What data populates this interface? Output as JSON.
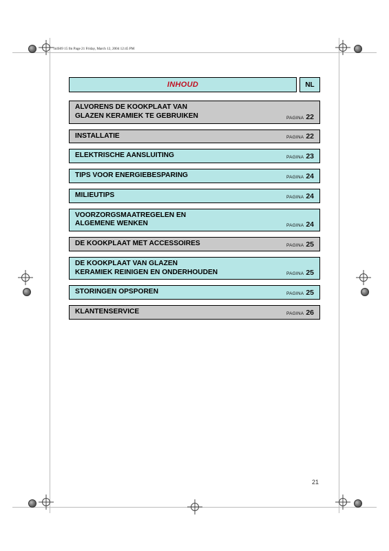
{
  "page_info_line": "InlS69 15 fm  Page 21  Friday, March 12, 2004  12:45 PM",
  "header": {
    "title": "INHOUD",
    "lang": "NL"
  },
  "page_label": "PAGINA",
  "page_number": "21",
  "colors": {
    "cyan": "#b6e6e6",
    "gray": "#c9c9c9",
    "title_red": "#c01020",
    "border": "#000000"
  },
  "toc": [
    {
      "title_lines": [
        "ALVORENS DE KOOKPLAAT VAN",
        "GLAZEN KERAMIEK TE GEBRUIKEN"
      ],
      "page": "22",
      "bg": "gray"
    },
    {
      "title_lines": [
        "INSTALLATIE"
      ],
      "page": "22",
      "bg": "gray"
    },
    {
      "title_lines": [
        "ELEKTRISCHE AANSLUITING"
      ],
      "page": "23",
      "bg": "cyan"
    },
    {
      "title_lines": [
        "TIPS VOOR ENERGIEBESPARING"
      ],
      "page": "24",
      "bg": "cyan"
    },
    {
      "title_lines": [
        "MILIEUTIPS"
      ],
      "page": "24",
      "bg": "cyan"
    },
    {
      "title_lines": [
        "VOORZORGSMAATREGELEN EN",
        "ALGEMENE WENKEN"
      ],
      "page": "24",
      "bg": "cyan"
    },
    {
      "title_lines": [
        "DE KOOKPLAAT MET ACCESSOIRES"
      ],
      "page": "25",
      "bg": "gray"
    },
    {
      "title_lines": [
        "DE KOOKPLAAT VAN GLAZEN",
        "KERAMIEK REINIGEN EN ONDERHOUDEN"
      ],
      "page": "25",
      "bg": "cyan"
    },
    {
      "title_lines": [
        "STORINGEN OPSPOREN"
      ],
      "page": "25",
      "bg": "cyan"
    },
    {
      "title_lines": [
        "KLANTENSERVICE"
      ],
      "page": "26",
      "bg": "gray"
    }
  ]
}
